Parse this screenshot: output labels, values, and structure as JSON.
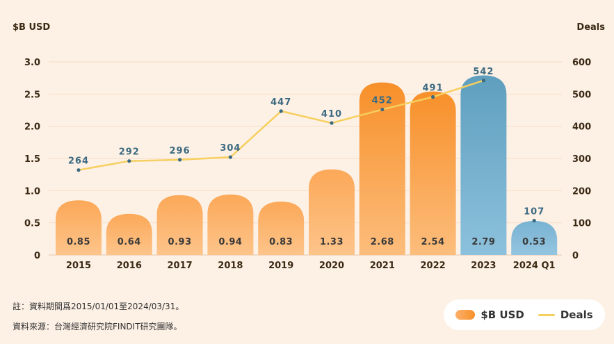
{
  "chart_data": {
    "type": "bar",
    "left_axis_title": "$B USD",
    "right_axis_title": "Deals",
    "categories": [
      "2015",
      "2016",
      "2017",
      "2018",
      "2019",
      "2020",
      "2021",
      "2022",
      "2023",
      "2024 Q1"
    ],
    "series": [
      {
        "name": "$B USD",
        "type": "bar",
        "axis": "left",
        "values": [
          0.85,
          0.64,
          0.93,
          0.94,
          0.83,
          1.33,
          2.68,
          2.54,
          2.79,
          0.53
        ],
        "labels": [
          "0.85",
          "0.64",
          "0.93",
          "0.94",
          "0.83",
          "1.33",
          "2.68",
          "2.54",
          "2.79",
          "0.53"
        ]
      },
      {
        "name": "Deals",
        "type": "line",
        "axis": "right",
        "values": [
          264,
          292,
          296,
          304,
          447,
          410,
          452,
          491,
          542,
          107
        ]
      }
    ],
    "left_axis": {
      "min": 0,
      "max": 3.0,
      "ticks": [
        "0",
        "0.5",
        "1.0",
        "1.5",
        "2.0",
        "2.5",
        "3.0"
      ]
    },
    "right_axis": {
      "min": 0,
      "max": 600,
      "ticks": [
        "0",
        "100",
        "200",
        "300",
        "400",
        "500",
        "600"
      ]
    },
    "colors": {
      "bar_orange_top": "#f7902a",
      "bar_orange_bottom": "#fcbd7c",
      "bar_blue_top": "#5f9fbe",
      "bar_blue_bottom": "#8cc1dd",
      "line": "#f6cf5e",
      "point": "#3c6a80",
      "deal_label": "#3c6a80",
      "axis_text": "#3a2a14",
      "grid": "#f5dcc4"
    },
    "legend_position": "bottom-right"
  },
  "notes": {
    "period": "註：資料期間爲2015/01/01至2024/03/31。",
    "source": "資料來源：台灣經濟研究院FINDIT研究團隊。"
  },
  "legend": {
    "bar_label": "$B USD",
    "line_label": "Deals"
  }
}
